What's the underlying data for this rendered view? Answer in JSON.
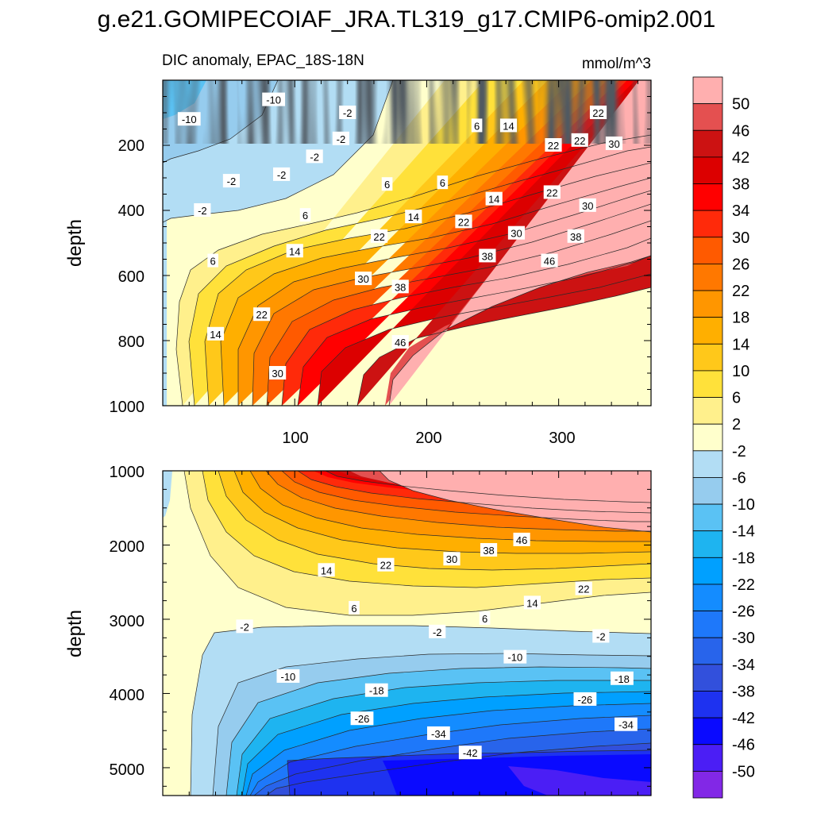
{
  "chart_data": {
    "type": "heatmap",
    "title": "g.e21.GOMIPECOIAF_JRA.TL319_g17.CMIP6-omip2.001",
    "variable_label": "DIC anomaly, EPAC_18S-18N",
    "units_label": "mmol/m^3",
    "panels": [
      {
        "name": "upper",
        "ylabel": "depth",
        "xlim": [
          0,
          370
        ],
        "ylim": [
          0,
          1000
        ],
        "y_inverted": true,
        "xticks": [
          "100",
          "200",
          "300"
        ],
        "yticks": [
          "200",
          "400",
          "600",
          "800",
          "1000"
        ],
        "contour_labels": [
          {
            "text": "-10",
            "x": 20,
            "y": 120
          },
          {
            "text": "-10",
            "x": 84,
            "y": 60
          },
          {
            "text": "-2",
            "x": 140,
            "y": 100
          },
          {
            "text": "-2",
            "x": 135,
            "y": 180
          },
          {
            "text": "-2",
            "x": 115,
            "y": 235
          },
          {
            "text": "-2",
            "x": 90,
            "y": 290
          },
          {
            "text": "-2",
            "x": 52,
            "y": 310
          },
          {
            "text": "-2",
            "x": 30,
            "y": 400
          },
          {
            "text": "6",
            "x": 238,
            "y": 140
          },
          {
            "text": "14",
            "x": 262,
            "y": 140
          },
          {
            "text": "22",
            "x": 330,
            "y": 100
          },
          {
            "text": "22",
            "x": 316,
            "y": 185
          },
          {
            "text": "30",
            "x": 342,
            "y": 195
          },
          {
            "text": "22",
            "x": 296,
            "y": 200
          },
          {
            "text": "6",
            "x": 170,
            "y": 320
          },
          {
            "text": "6",
            "x": 212,
            "y": 315
          },
          {
            "text": "14",
            "x": 251,
            "y": 365
          },
          {
            "text": "22",
            "x": 295,
            "y": 345
          },
          {
            "text": "30",
            "x": 322,
            "y": 385
          },
          {
            "text": "14",
            "x": 190,
            "y": 420
          },
          {
            "text": "22",
            "x": 228,
            "y": 435
          },
          {
            "text": "30",
            "x": 268,
            "y": 470
          },
          {
            "text": "38",
            "x": 313,
            "y": 480
          },
          {
            "text": "6",
            "x": 108,
            "y": 415
          },
          {
            "text": "14",
            "x": 100,
            "y": 525
          },
          {
            "text": "22",
            "x": 164,
            "y": 480
          },
          {
            "text": "38",
            "x": 246,
            "y": 540
          },
          {
            "text": "46",
            "x": 293,
            "y": 555
          },
          {
            "text": "6",
            "x": 38,
            "y": 555
          },
          {
            "text": "30",
            "x": 152,
            "y": 610
          },
          {
            "text": "38",
            "x": 180,
            "y": 635
          },
          {
            "text": "22",
            "x": 75,
            "y": 720
          },
          {
            "text": "14",
            "x": 40,
            "y": 780
          },
          {
            "text": "46",
            "x": 180,
            "y": 805
          },
          {
            "text": "30",
            "x": 87,
            "y": 900
          }
        ]
      },
      {
        "name": "lower",
        "ylabel": "depth",
        "xlim": [
          0,
          370
        ],
        "ylim": [
          1000,
          5375
        ],
        "y_inverted": true,
        "yticks": [
          "1000",
          "2000",
          "3000",
          "4000",
          "5000"
        ],
        "contour_labels": [
          {
            "text": "46",
            "x": 272,
            "y": 1930
          },
          {
            "text": "38",
            "x": 247,
            "y": 2070
          },
          {
            "text": "30",
            "x": 219,
            "y": 2190
          },
          {
            "text": "22",
            "x": 169,
            "y": 2270
          },
          {
            "text": "14",
            "x": 124,
            "y": 2340
          },
          {
            "text": "22",
            "x": 319,
            "y": 2590
          },
          {
            "text": "14",
            "x": 280,
            "y": 2780
          },
          {
            "text": "6",
            "x": 244,
            "y": 2990
          },
          {
            "text": "6",
            "x": 145,
            "y": 2850
          },
          {
            "text": "-2",
            "x": 62,
            "y": 3100
          },
          {
            "text": "-2",
            "x": 208,
            "y": 3170
          },
          {
            "text": "-2",
            "x": 332,
            "y": 3230
          },
          {
            "text": "-10",
            "x": 267,
            "y": 3510
          },
          {
            "text": "-10",
            "x": 95,
            "y": 3770
          },
          {
            "text": "-18",
            "x": 162,
            "y": 3960
          },
          {
            "text": "-18",
            "x": 348,
            "y": 3800
          },
          {
            "text": "-26",
            "x": 320,
            "y": 4080
          },
          {
            "text": "-26",
            "x": 151,
            "y": 4340
          },
          {
            "text": "-34",
            "x": 209,
            "y": 4540
          },
          {
            "text": "-34",
            "x": 351,
            "y": 4420
          },
          {
            "text": "-42",
            "x": 233,
            "y": 4800
          }
        ]
      }
    ],
    "colorbar": {
      "labels": [
        "50",
        "46",
        "42",
        "38",
        "34",
        "30",
        "26",
        "22",
        "18",
        "14",
        "10",
        "6",
        "2",
        "-2",
        "-6",
        "-10",
        "-14",
        "-18",
        "-22",
        "-26",
        "-30",
        "-34",
        "-38",
        "-42",
        "-46",
        "-50"
      ],
      "colors": [
        "#FFAFAF",
        "#E45050",
        "#CC1212",
        "#DC0000",
        "#FF0000",
        "#FF2A0A",
        "#FF5A00",
        "#FF7800",
        "#FF9600",
        "#FFAF00",
        "#FFC81A",
        "#FFE13A",
        "#FFF08C",
        "#FFFFCC",
        "#B2DDF4",
        "#96CCEE",
        "#5AC2F4",
        "#1EB4F0",
        "#00A0FF",
        "#148CFF",
        "#1E78FA",
        "#2864EB",
        "#3250DC",
        "#1E32F0",
        "#0A0AFF",
        "#4B1EF5",
        "#8228E6"
      ]
    }
  }
}
